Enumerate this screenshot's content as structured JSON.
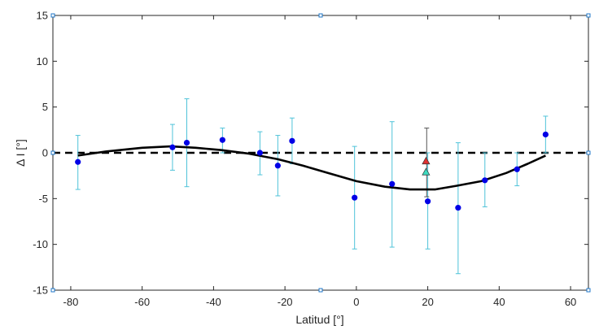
{
  "chart_data": {
    "type": "scatter",
    "xlabel": "Latitud [°]",
    "ylabel": "Δ I [°]",
    "xlim": [
      -85,
      65
    ],
    "ylim": [
      -15,
      15
    ],
    "xticks": [
      -80,
      -60,
      -40,
      -20,
      0,
      20,
      40,
      60
    ],
    "yticks": [
      -15,
      -10,
      -5,
      0,
      5,
      10,
      15
    ],
    "grid": false,
    "series": [
      {
        "kind": "points-with-errorbars",
        "color": "#0000e6",
        "errorbar_color": "#4fc3d9",
        "points": [
          {
            "x": -78,
            "y": -1.0,
            "lo": -4.0,
            "hi": 1.9
          },
          {
            "x": -51.5,
            "y": 0.6,
            "lo": -1.9,
            "hi": 3.1
          },
          {
            "x": -47.5,
            "y": 1.1,
            "lo": -3.7,
            "hi": 5.9
          },
          {
            "x": -37.5,
            "y": 1.4,
            "lo": 0.0,
            "hi": 2.7
          },
          {
            "x": -27,
            "y": 0.0,
            "lo": -2.4,
            "hi": 2.3
          },
          {
            "x": -22,
            "y": -1.4,
            "lo": -4.7,
            "hi": 1.9
          },
          {
            "x": -18,
            "y": 1.3,
            "lo": -1.2,
            "hi": 3.8
          },
          {
            "x": -0.5,
            "y": -4.9,
            "lo": -10.5,
            "hi": 0.7
          },
          {
            "x": 10,
            "y": -3.4,
            "lo": -10.3,
            "hi": 3.4
          },
          {
            "x": 20,
            "y": -5.3,
            "lo": -10.5,
            "hi": 0.0
          },
          {
            "x": 28.5,
            "y": -6.0,
            "lo": -13.2,
            "hi": 1.1
          },
          {
            "x": 36,
            "y": -3.0,
            "lo": -5.9,
            "hi": 0.0
          },
          {
            "x": 45,
            "y": -1.8,
            "lo": -3.6,
            "hi": 0.0
          },
          {
            "x": 53,
            "y": 2.0,
            "lo": 0.0,
            "hi": 4.0
          }
        ]
      },
      {
        "kind": "triangle",
        "color": "#e03030",
        "points": [
          {
            "x": 19.5,
            "y": -0.9
          }
        ]
      },
      {
        "kind": "triangle",
        "color": "#3ddbc0",
        "points": [
          {
            "x": 19.5,
            "y": -2.1
          }
        ]
      },
      {
        "kind": "errorbar-gray",
        "color": "#555555",
        "points": [
          {
            "x": 19.7,
            "lo": -4.8,
            "hi": 2.7
          }
        ]
      },
      {
        "kind": "curve",
        "color": "#000000",
        "x": [
          -78,
          -70,
          -60,
          -52,
          -45,
          -38,
          -30,
          -22,
          -15,
          -8,
          0,
          8,
          15,
          22,
          28,
          35,
          42,
          48,
          53
        ],
        "y": [
          -0.3,
          0.15,
          0.55,
          0.7,
          0.55,
          0.3,
          -0.1,
          -0.7,
          -1.4,
          -2.2,
          -3.1,
          -3.7,
          -4.0,
          -4.0,
          -3.6,
          -3.1,
          -2.2,
          -1.2,
          -0.3
        ]
      },
      {
        "kind": "zero-line",
        "color": "#000000",
        "y": 0
      }
    ]
  },
  "style": {
    "axis_color": "#262626",
    "corner_marker_color": "#1f77c8"
  }
}
